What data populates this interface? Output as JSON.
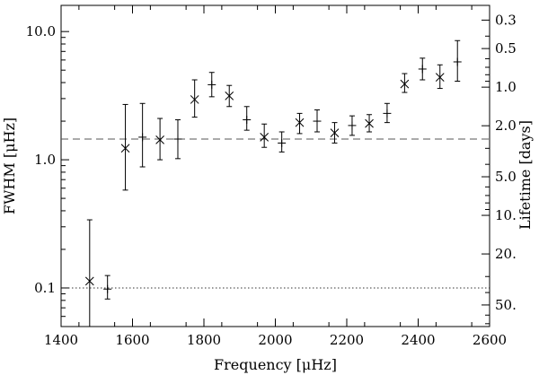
{
  "chart_data": {
    "type": "scatter",
    "xlabel": "Frequency [μHz]",
    "ylabel": "FWHM [μHz]",
    "y2label": "Lifetime [days]",
    "xlim": [
      1400,
      2600
    ],
    "ylim": [
      0.05,
      16
    ],
    "yscale": "log",
    "xticks": [
      1400,
      1600,
      1800,
      2000,
      2200,
      2400,
      2600
    ],
    "xtick_labels": [
      "1400",
      "1600",
      "1800",
      "2000",
      "2200",
      "2400",
      "2600"
    ],
    "yticks": [
      0.1,
      1.0,
      10.0
    ],
    "ytick_labels": [
      "0.1",
      "1.0",
      "10.0"
    ],
    "y2ticks": [
      0.3,
      0.5,
      1.0,
      2.0,
      5.0,
      10.0,
      20.0,
      50.0
    ],
    "y2tick_labels": [
      "0.3",
      "0.5",
      "1.0",
      "2.0",
      "5.0",
      "10.",
      "20.",
      "50."
    ],
    "grid": false,
    "series": [
      {
        "marker": "x",
        "points": [
          {
            "x": 1480,
            "y": 0.113,
            "ylo": 0.05,
            "yhi": 0.34
          },
          {
            "x": 1580,
            "y": 1.23,
            "ylo": 0.58,
            "yhi": 2.7
          },
          {
            "x": 1677,
            "y": 1.43,
            "ylo": 1.0,
            "yhi": 2.1
          },
          {
            "x": 1774,
            "y": 2.95,
            "ylo": 2.15,
            "yhi": 4.2
          },
          {
            "x": 1871,
            "y": 3.15,
            "ylo": 2.6,
            "yhi": 3.8
          },
          {
            "x": 1969,
            "y": 1.5,
            "ylo": 1.25,
            "yhi": 1.9
          },
          {
            "x": 2068,
            "y": 1.95,
            "ylo": 1.6,
            "yhi": 2.3
          },
          {
            "x": 2166,
            "y": 1.62,
            "ylo": 1.35,
            "yhi": 1.95
          },
          {
            "x": 2263,
            "y": 1.92,
            "ylo": 1.65,
            "yhi": 2.25
          },
          {
            "x": 2362,
            "y": 3.9,
            "ylo": 3.35,
            "yhi": 4.7
          },
          {
            "x": 2461,
            "y": 4.4,
            "ylo": 3.6,
            "yhi": 5.5
          }
        ]
      },
      {
        "marker": "+",
        "points": [
          {
            "x": 1530,
            "y": 0.098,
            "ylo": 0.082,
            "yhi": 0.125
          },
          {
            "x": 1628,
            "y": 1.5,
            "ylo": 0.88,
            "yhi": 2.75
          },
          {
            "x": 1727,
            "y": 1.45,
            "ylo": 1.02,
            "yhi": 2.05
          },
          {
            "x": 1822,
            "y": 3.85,
            "ylo": 3.1,
            "yhi": 4.8
          },
          {
            "x": 1920,
            "y": 2.05,
            "ylo": 1.7,
            "yhi": 2.6
          },
          {
            "x": 2018,
            "y": 1.35,
            "ylo": 1.15,
            "yhi": 1.65
          },
          {
            "x": 2117,
            "y": 2.0,
            "ylo": 1.65,
            "yhi": 2.45
          },
          {
            "x": 2215,
            "y": 1.85,
            "ylo": 1.55,
            "yhi": 2.2
          },
          {
            "x": 2313,
            "y": 2.3,
            "ylo": 1.95,
            "yhi": 2.75
          },
          {
            "x": 2412,
            "y": 5.1,
            "ylo": 4.2,
            "yhi": 6.2
          },
          {
            "x": 2510,
            "y": 5.8,
            "ylo": 4.1,
            "yhi": 8.5
          }
        ]
      }
    ],
    "hlines": [
      {
        "y": 1.45,
        "style": "dashed",
        "color": "#555555"
      },
      {
        "y": 0.1,
        "style": "dotted",
        "color": "#333333"
      }
    ]
  }
}
